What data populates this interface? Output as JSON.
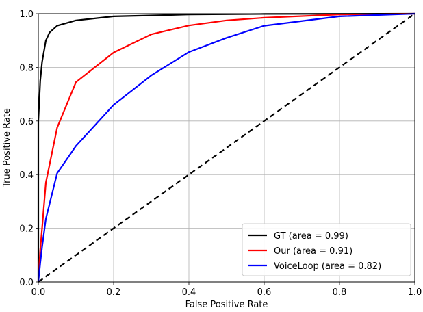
{
  "chart_data": {
    "type": "line",
    "title": "",
    "xlabel": "False Positive Rate",
    "ylabel": "True Positive Rate",
    "xlim": [
      0,
      1
    ],
    "ylim": [
      0,
      1
    ],
    "xticks": [
      "0.0",
      "0.2",
      "0.4",
      "0.6",
      "0.8",
      "1.0"
    ],
    "yticks": [
      "0.0",
      "0.2",
      "0.4",
      "0.6",
      "0.8",
      "1.0"
    ],
    "grid": true,
    "legend_position": "bottom-right",
    "series": [
      {
        "name": "GT (area = 0.99)",
        "color": "#000000",
        "style": "solid",
        "x": [
          0,
          0,
          0.005,
          0.01,
          0.02,
          0.03,
          0.05,
          0.1,
          0.2,
          0.4,
          0.6,
          1.0
        ],
        "y": [
          0,
          0.6,
          0.75,
          0.82,
          0.9,
          0.93,
          0.955,
          0.975,
          0.99,
          0.997,
          0.999,
          1.0
        ]
      },
      {
        "name": "Our (area = 0.91)",
        "color": "#ff0000",
        "style": "solid",
        "x": [
          0,
          0.005,
          0.01,
          0.02,
          0.05,
          0.1,
          0.2,
          0.3,
          0.4,
          0.5,
          0.6,
          0.8,
          1.0
        ],
        "y": [
          0,
          0.12,
          0.2,
          0.37,
          0.575,
          0.745,
          0.855,
          0.923,
          0.956,
          0.975,
          0.985,
          0.997,
          1.0
        ]
      },
      {
        "name": "VoiceLoop (area = 0.82)",
        "color": "#0000ff",
        "style": "solid",
        "x": [
          0,
          0.005,
          0.01,
          0.02,
          0.05,
          0.1,
          0.2,
          0.3,
          0.4,
          0.5,
          0.6,
          0.8,
          1.0
        ],
        "y": [
          0,
          0.07,
          0.13,
          0.235,
          0.405,
          0.507,
          0.66,
          0.77,
          0.857,
          0.91,
          0.955,
          0.99,
          1.0
        ]
      },
      {
        "color": "#000000",
        "style": "dashed",
        "x": [
          0,
          1
        ],
        "y": [
          0,
          1
        ]
      }
    ]
  }
}
